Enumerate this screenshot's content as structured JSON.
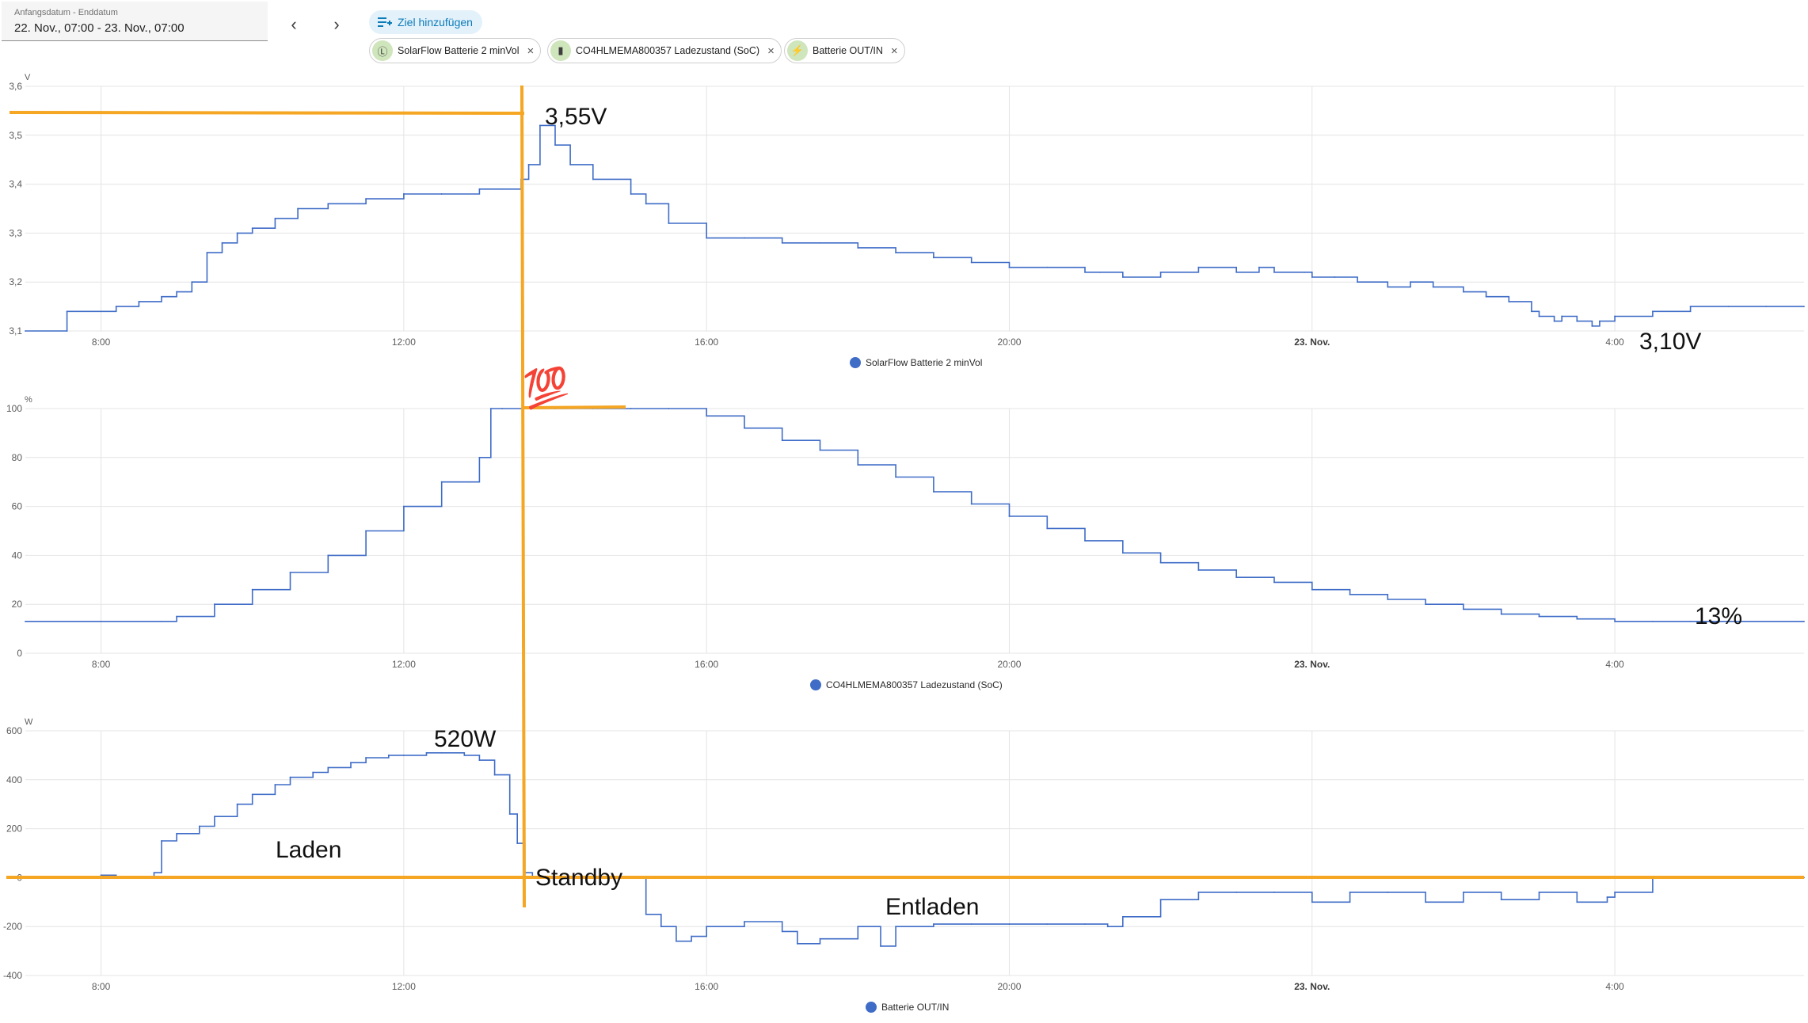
{
  "toolbar": {
    "date_label": "Anfangsdatum - Enddatum",
    "date_value": "22. Nov., 07:00 - 23. Nov., 07:00",
    "prev_icon": "chevron-left-icon",
    "next_icon": "chevron-right-icon",
    "add_target_label": "Ziel hinzufügen",
    "targets": [
      {
        "label": "SolarFlow Batterie 2 minVol",
        "icon": "voltmeter-icon"
      },
      {
        "label": "CO4HLMEMA800357 Ladezustand (SoC)",
        "icon": "battery-icon"
      },
      {
        "label": "Batterie OUT/IN",
        "icon": "lightning-icon"
      }
    ]
  },
  "annotations": {
    "max_voltage": "3,55V",
    "min_voltage": "3,10V",
    "soc_end": "13%",
    "hundred_emoji": "💯",
    "max_power": "520W",
    "charging": "Laden",
    "standby": "Standby",
    "discharging": "Entladen",
    "highlight_color": "#f5a623"
  },
  "chart_data": [
    {
      "type": "line",
      "ylabel": "V",
      "ylim": [
        3.1,
        3.6
      ],
      "yticks": [
        "3,1",
        "3,2",
        "3,3",
        "3,4",
        "3,5",
        "3,6"
      ],
      "xticks": [
        "8:00",
        "12:00",
        "16:00",
        "20:00",
        "23. Nov.",
        "4:00"
      ],
      "color": "#3f6cc7",
      "series": [
        {
          "name": "SolarFlow Batterie 2 minVol",
          "x": [
            7.0,
            7.55,
            7.55,
            8.0,
            8.2,
            8.5,
            8.8,
            9.0,
            9.2,
            9.4,
            9.6,
            9.8,
            10.0,
            10.3,
            10.6,
            11.0,
            11.5,
            12.0,
            12.5,
            13.0,
            13.3,
            13.55,
            13.65,
            13.8,
            14.0,
            14.2,
            14.5,
            15.0,
            15.2,
            15.5,
            16.0,
            16.5,
            17.0,
            17.5,
            18.0,
            18.5,
            19.0,
            19.5,
            20.0,
            20.5,
            21.0,
            21.2,
            21.5,
            22.0,
            22.5,
            23.0,
            23.3,
            23.5,
            23.9,
            24.0,
            24.3,
            24.6,
            25.0,
            25.3,
            25.6,
            26.0,
            26.3,
            26.6,
            26.9,
            27.0,
            27.2,
            27.3,
            27.5,
            27.7,
            27.8,
            28.0,
            28.5,
            29.0,
            29.5,
            30.0,
            30.5
          ],
          "values": [
            3.1,
            3.1,
            3.14,
            3.14,
            3.15,
            3.16,
            3.17,
            3.18,
            3.2,
            3.26,
            3.28,
            3.3,
            3.31,
            3.33,
            3.35,
            3.36,
            3.37,
            3.38,
            3.38,
            3.39,
            3.39,
            3.41,
            3.44,
            3.52,
            3.48,
            3.44,
            3.41,
            3.38,
            3.36,
            3.32,
            3.29,
            3.29,
            3.28,
            3.28,
            3.27,
            3.26,
            3.25,
            3.24,
            3.23,
            3.23,
            3.22,
            3.22,
            3.21,
            3.22,
            3.23,
            3.22,
            3.23,
            3.22,
            3.22,
            3.21,
            3.21,
            3.2,
            3.19,
            3.2,
            3.19,
            3.18,
            3.17,
            3.16,
            3.14,
            3.13,
            3.12,
            3.13,
            3.12,
            3.11,
            3.12,
            3.13,
            3.14,
            3.15,
            3.15,
            3.15,
            3.15
          ]
        }
      ]
    },
    {
      "type": "line",
      "ylabel": "%",
      "ylim": [
        0,
        100
      ],
      "yticks": [
        "0",
        "20",
        "40",
        "60",
        "80",
        "100"
      ],
      "xticks": [
        "8:00",
        "12:00",
        "16:00",
        "20:00",
        "23. Nov.",
        "4:00"
      ],
      "color": "#3f6cc7",
      "series": [
        {
          "name": "CO4HLMEMA800357 Ladezustand (SoC)",
          "x": [
            7.0,
            8.0,
            8.8,
            9.0,
            9.5,
            10.0,
            10.5,
            11.0,
            11.5,
            12.0,
            12.5,
            13.0,
            13.15,
            13.3,
            13.6,
            13.7,
            14.0,
            14.5,
            15.0,
            15.5,
            16.0,
            16.5,
            17.0,
            17.5,
            18.0,
            18.5,
            19.0,
            19.5,
            20.0,
            20.5,
            21.0,
            21.5,
            22.0,
            22.5,
            23.0,
            23.5,
            24.0,
            24.5,
            25.0,
            25.5,
            26.0,
            26.5,
            27.0,
            27.5,
            28.0,
            28.5,
            29.0,
            30.5
          ],
          "values": [
            13,
            13,
            13,
            15,
            20,
            26,
            33,
            40,
            50,
            60,
            70,
            80,
            100,
            100,
            100,
            100,
            100,
            100,
            100,
            100,
            97,
            92,
            87,
            83,
            77,
            72,
            66,
            61,
            56,
            51,
            46,
            41,
            37,
            34,
            31,
            29,
            26,
            24,
            22,
            20,
            18,
            16,
            15,
            14,
            13,
            13,
            13,
            13
          ]
        }
      ]
    },
    {
      "type": "line",
      "ylabel": "W",
      "ylim": [
        -400,
        600
      ],
      "yticks": [
        "-400",
        "-200",
        "0",
        "200",
        "400",
        "600"
      ],
      "xticks": [
        "8:00",
        "12:00",
        "16:00",
        "20:00",
        "23. Nov.",
        "4:00"
      ],
      "color": "#3f6cc7",
      "series": [
        {
          "name": "Batterie OUT/IN",
          "x": [
            7.0,
            7.8,
            8.0,
            8.2,
            8.5,
            8.7,
            8.8,
            9.0,
            9.3,
            9.5,
            9.8,
            10.0,
            10.3,
            10.5,
            10.8,
            11.0,
            11.3,
            11.5,
            11.8,
            12.0,
            12.3,
            12.5,
            12.8,
            13.0,
            13.2,
            13.4,
            13.5,
            13.6,
            13.7,
            14.0,
            14.5,
            15.0,
            15.2,
            15.4,
            15.6,
            15.8,
            16.0,
            16.5,
            17.0,
            17.2,
            17.5,
            18.0,
            18.3,
            18.5,
            19.0,
            19.5,
            20.0,
            20.5,
            21.0,
            21.3,
            21.5,
            22.0,
            22.5,
            23.0,
            23.5,
            24.0,
            24.5,
            25.0,
            25.5,
            26.0,
            26.5,
            27.0,
            27.5,
            27.9,
            28.0,
            28.5,
            29.0,
            29.5,
            30.0,
            30.5
          ],
          "values": [
            0,
            0,
            10,
            0,
            0,
            20,
            150,
            180,
            210,
            250,
            300,
            340,
            380,
            410,
            430,
            450,
            470,
            490,
            500,
            500,
            510,
            510,
            500,
            480,
            420,
            260,
            140,
            20,
            0,
            0,
            0,
            0,
            -150,
            -200,
            -260,
            -240,
            -200,
            -180,
            -220,
            -270,
            -250,
            -200,
            -280,
            -200,
            -190,
            -190,
            -190,
            -190,
            -190,
            -200,
            -160,
            -90,
            -60,
            -60,
            -60,
            -100,
            -60,
            -60,
            -100,
            -60,
            -90,
            -60,
            -100,
            -80,
            -60,
            0,
            0,
            0,
            0,
            0
          ]
        }
      ]
    }
  ]
}
